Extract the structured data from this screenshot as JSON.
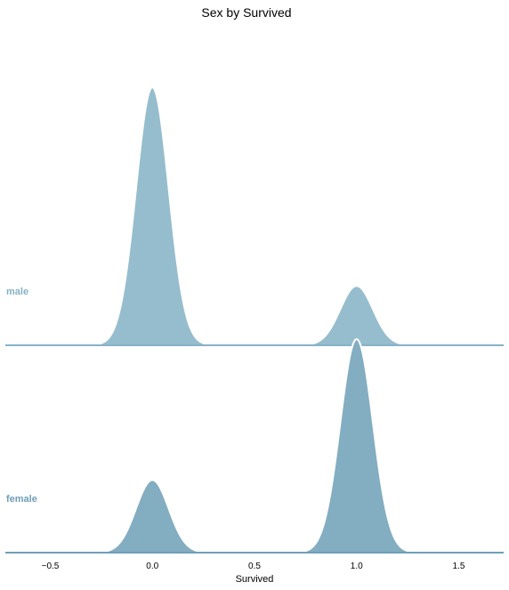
{
  "chart_data": {
    "type": "area",
    "subtype": "ridgeline-kde",
    "title": "Sex by Survived",
    "xlabel": "Survived",
    "ylabel": "",
    "xlim": [
      -0.72,
      1.72
    ],
    "xticks": [
      -0.5,
      0.0,
      0.5,
      1.0,
      1.5
    ],
    "xtick_labels": [
      "−0.5",
      "0.0",
      "0.5",
      "1.0",
      "1.5"
    ],
    "grid": false,
    "series": [
      {
        "name": "male",
        "color": "#95bdcd",
        "label_color": "#86b2c6",
        "peaks": [
          {
            "x": 0.0,
            "relative_height": 1.0,
            "bandwidth": 0.08
          },
          {
            "x": 1.0,
            "relative_height": 0.23,
            "bandwidth": 0.08
          }
        ]
      },
      {
        "name": "female",
        "color": "#83adc1",
        "label_color": "#6f9fb7",
        "peaks": [
          {
            "x": 0.0,
            "relative_height": 0.34,
            "bandwidth": 0.08
          },
          {
            "x": 1.0,
            "relative_height": 1.0,
            "bandwidth": 0.08
          }
        ]
      }
    ]
  }
}
